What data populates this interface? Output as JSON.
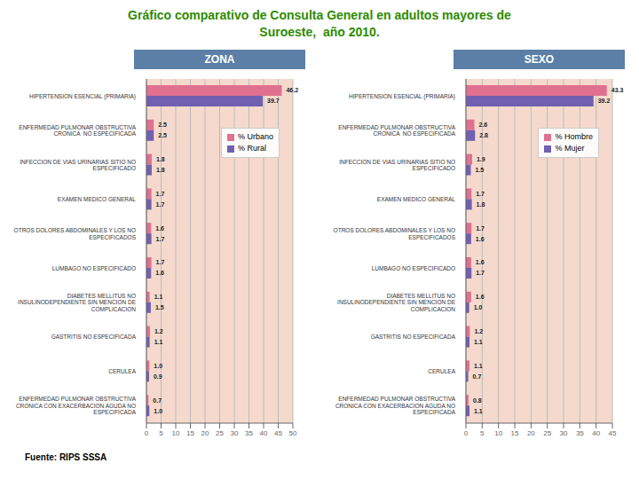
{
  "title": "Gráfico comparativo de Consulta General en adultos mayores de",
  "subtitle": "Suroeste,  año 2010.",
  "annotations": [
    "Fuente: RIPS SSSA"
  ],
  "chart_data": [
    {
      "type": "bar",
      "title": "ZONA",
      "orientation": "horizontal",
      "categories": [
        "ENFERMEDAD PULMONAR OBSTRUCTIVA\nCRONICA CON EXACERBACION AGUDA NO\nESPECIFICADA",
        "CERULEA",
        "GASTRITIS NO ESPECIFICADA",
        "DIABETES MELLITUS NO\nINSULINODEPENDIENTE SIN MENCION DE\nCOMPLICACION",
        "LUMBAGO NO ESPECIFICADO",
        "OTROS DOLORES ABDOMINALES Y LOS NO\nESPECIFICADOS",
        "EXAMEN MEDICO GENERAL",
        "INFECCION DE VIAS URINARIAS SITIO NO\nESPECIFICADO",
        "ENFERMEDAD PULMONAR OBSTRUCTIVA\nCRONICA  NO ESPECIFICADA",
        "HIPERTENSION ESENCIAL (PRIMARIA)"
      ],
      "series": [
        {
          "name": "% Urbano",
          "color": "#E07090",
          "values": [
            0.7,
            1.0,
            1.2,
            1.1,
            1.7,
            1.6,
            1.7,
            1.8,
            2.5,
            46.2
          ],
          "value_labels": [
            "0.7",
            "1.0",
            "1.2",
            "1.1",
            "1.7",
            "1.6",
            "1.7",
            "1.8",
            "2.5",
            "46.2"
          ]
        },
        {
          "name": "% Rural",
          "color": "#7060B0",
          "values": [
            1.0,
            0.9,
            1.1,
            1.5,
            1.6,
            1.7,
            1.7,
            1.8,
            2.5,
            39.7
          ],
          "value_labels": [
            "1.0",
            "0.9",
            "1.1",
            "1.5",
            "1.6",
            "1.7",
            "1.7",
            "1.8",
            "2.5",
            "39.7"
          ]
        }
      ],
      "xlim": [
        0,
        50
      ],
      "xticks": [
        0,
        5,
        10,
        15,
        20,
        25,
        30,
        35,
        40,
        45,
        50
      ],
      "grid": true,
      "data_labels": true,
      "legend": "upper right"
    },
    {
      "type": "bar",
      "title": "SEXO",
      "orientation": "horizontal",
      "categories": [
        "ENFERMEDAD PULMONAR OBSTRUCTIVA\nCRONICA CON EXACERBACION AGUDA NO\nESPECIFICADA",
        "CERULEA",
        "GASTRITIS NO ESPECIFICADA",
        "DIABETES MELLITUS NO\nINSULINODEPENDIENTE SIN MENCION DE\nCOMPLICACION",
        "LUMBAGO NO ESPECIFICADO",
        "OTROS DOLORES ABDOMINALES Y LOS NO\nESPECIFICADOS",
        "EXAMEN MEDICO GENERAL",
        "INFECCION DE VIAS URINARIAS SITIO NO\nESPECIFICADO",
        "ENFERMEDAD PULMONAR OBSTRUCTIVA\nCRONICA  NO ESPECIFICADA",
        "HIPERTENSION ESENCIAL (PRIMARIA)"
      ],
      "series": [
        {
          "name": "% Hombre",
          "color": "#E07090",
          "values": [
            0.8,
            1.1,
            1.2,
            1.6,
            1.6,
            1.7,
            1.7,
            1.9,
            2.6,
            43.3
          ],
          "value_labels": [
            "0.8",
            "1.1",
            "1.2",
            "1.6",
            "1.6",
            "1.7",
            "1.7",
            "1.9",
            "2.6",
            "43.3"
          ]
        },
        {
          "name": "% Mujer",
          "color": "#7060B0",
          "values": [
            1.1,
            0.7,
            1.1,
            1.0,
            1.7,
            1.6,
            1.8,
            1.5,
            2.8,
            39.2
          ],
          "value_labels": [
            "1.1",
            "0.7",
            "1.1",
            "1.0",
            "1.7",
            "1.6",
            "1.8",
            "1.5",
            "2.8",
            "39.2"
          ]
        }
      ],
      "xlim": [
        0,
        45
      ],
      "xticks": [
        0,
        5,
        10,
        15,
        20,
        25,
        30,
        35,
        40,
        45
      ],
      "grid": true,
      "data_labels": true,
      "legend": "upper right"
    }
  ]
}
